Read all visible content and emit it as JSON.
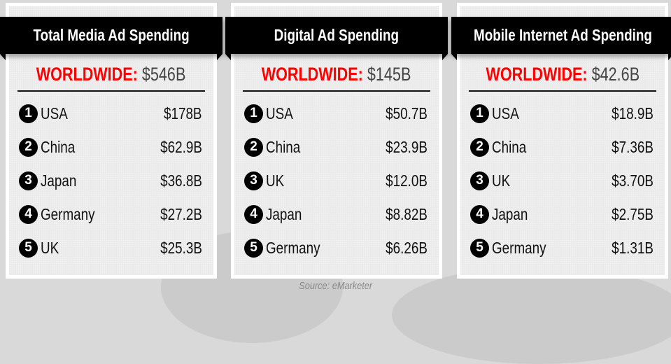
{
  "source": "Source: eMarketer",
  "panels": [
    {
      "title": "Total Media Ad Spending",
      "worldwide_label": "WORLDWIDE:",
      "worldwide_value": "$546B",
      "rows": [
        {
          "rank": "1",
          "country": "USA",
          "value": "$178B"
        },
        {
          "rank": "2",
          "country": "China",
          "value": "$62.9B"
        },
        {
          "rank": "3",
          "country": "Japan",
          "value": "$36.8B"
        },
        {
          "rank": "4",
          "country": "Germany",
          "value": "$27.2B"
        },
        {
          "rank": "5",
          "country": "UK",
          "value": "$25.3B"
        }
      ]
    },
    {
      "title": "Digital Ad Spending",
      "worldwide_label": "WORLDWIDE:",
      "worldwide_value": "$145B",
      "rows": [
        {
          "rank": "1",
          "country": "USA",
          "value": "$50.7B"
        },
        {
          "rank": "2",
          "country": "China",
          "value": "$23.9B"
        },
        {
          "rank": "3",
          "country": "UK",
          "value": "$12.0B"
        },
        {
          "rank": "4",
          "country": "Japan",
          "value": "$8.82B"
        },
        {
          "rank": "5",
          "country": "Germany",
          "value": "$6.26B"
        }
      ]
    },
    {
      "title": "Mobile Internet Ad Spending",
      "worldwide_label": "WORLDWIDE:",
      "worldwide_value": "$42.6B",
      "rows": [
        {
          "rank": "1",
          "country": "USA",
          "value": "$18.9B"
        },
        {
          "rank": "2",
          "country": "China",
          "value": "$7.36B"
        },
        {
          "rank": "3",
          "country": "UK",
          "value": "$3.70B"
        },
        {
          "rank": "4",
          "country": "Japan",
          "value": "$2.75B"
        },
        {
          "rank": "5",
          "country": "Germany",
          "value": "$1.31B"
        }
      ]
    }
  ]
}
